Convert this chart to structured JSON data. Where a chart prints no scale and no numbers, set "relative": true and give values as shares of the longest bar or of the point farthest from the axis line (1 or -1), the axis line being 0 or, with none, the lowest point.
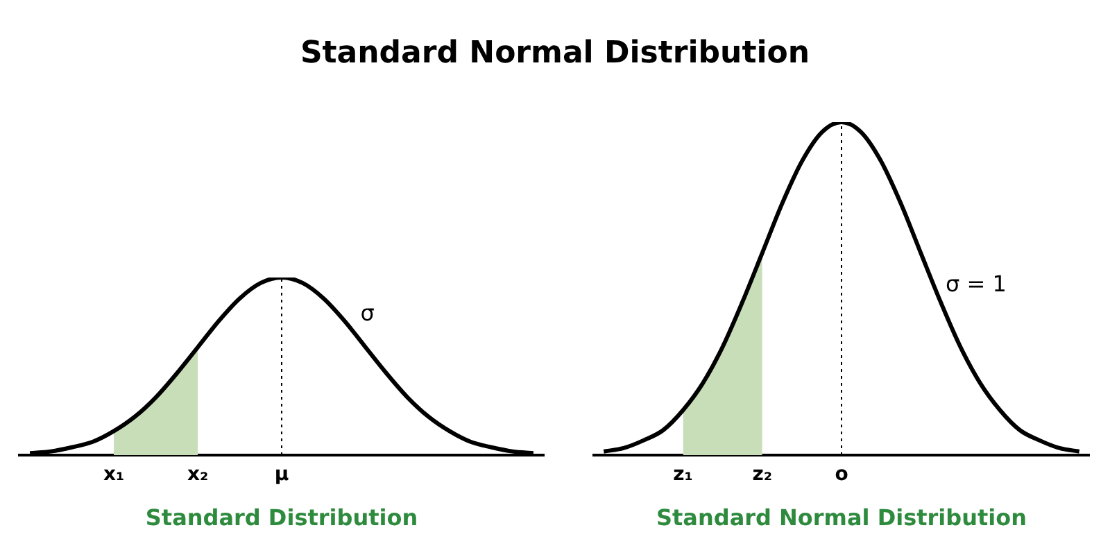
{
  "chart_data": [
    {
      "type": "line",
      "title": "Standard Normal Distribution",
      "xlabel": "Standard Distribution",
      "relative": true,
      "legend": false,
      "grid": false,
      "marker": "none",
      "categories": [
        null,
        null,
        null,
        null,
        "x₁",
        null,
        null,
        null,
        "x₂",
        null,
        null,
        null,
        "μ",
        null,
        null,
        null,
        null,
        null,
        null,
        null,
        null,
        null,
        null,
        null,
        null
      ],
      "series": [
        {
          "color": "#000000",
          "values": [
            0.011,
            0.021,
            0.044,
            0.075,
            0.135,
            0.216,
            0.325,
            0.46,
            0.607,
            0.755,
            0.882,
            0.969,
            1,
            0.969,
            0.882,
            0.755,
            0.607,
            0.46,
            0.325,
            0.216,
            0.135,
            0.075,
            0.044,
            0.021,
            0.011
          ]
        },
        {
          "type": "area",
          "color": "#c8deb8",
          "values": [
            null,
            null,
            null,
            null,
            0.135,
            0.216,
            0.325,
            0.46,
            0.607,
            null,
            null,
            null,
            null,
            null,
            null,
            null,
            null,
            null,
            null,
            null,
            null,
            null,
            null,
            null,
            null
          ]
        }
      ],
      "ref_lines": [
        {
          "axis": "x",
          "value": "μ",
          "line_style": "dotted"
        }
      ],
      "annotations": [
        "σ"
      ]
    },
    {
      "type": "line",
      "xlabel": "Standard Normal Distribution",
      "relative": true,
      "legend": false,
      "grid": false,
      "marker": "none",
      "categories": [
        null,
        null,
        null,
        null,
        "z₁",
        null,
        null,
        null,
        "z₂",
        null,
        null,
        null,
        "o",
        null,
        null,
        null,
        null,
        null,
        null,
        null,
        null,
        null,
        null,
        null,
        null
      ],
      "series": [
        {
          "color": "#000000",
          "values": [
            0.011,
            0.021,
            0.044,
            0.075,
            0.135,
            0.216,
            0.325,
            0.46,
            0.607,
            0.755,
            0.882,
            0.969,
            1,
            0.969,
            0.882,
            0.755,
            0.607,
            0.46,
            0.325,
            0.216,
            0.135,
            0.075,
            0.044,
            0.021,
            0.011
          ]
        },
        {
          "type": "area",
          "color": "#c8deb8",
          "values": [
            null,
            null,
            null,
            null,
            0.135,
            0.216,
            0.325,
            0.46,
            0.607,
            null,
            null,
            null,
            null,
            null,
            null,
            null,
            null,
            null,
            null,
            null,
            null,
            null,
            null,
            null,
            null
          ]
        }
      ],
      "ref_lines": [
        {
          "axis": "x",
          "value": "o",
          "line_style": "dotted"
        }
      ],
      "annotations": [
        "σ = 1"
      ]
    }
  ]
}
